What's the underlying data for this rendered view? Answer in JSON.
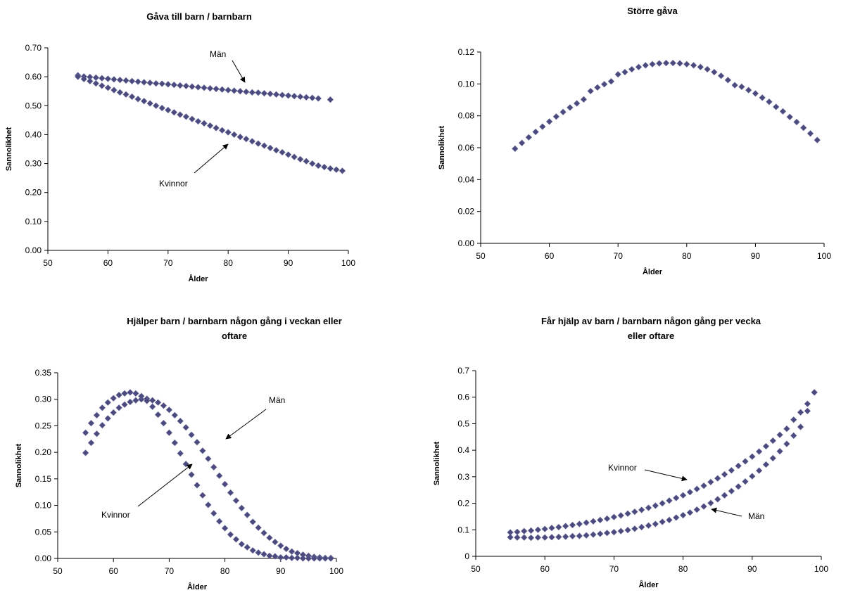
{
  "marker_color": "#4b4a7e",
  "chart_data": [
    {
      "type": "scatter",
      "title": "Gåva till barn / barnbarn",
      "xlabel": "Ålder",
      "ylabel": "Sannolikhet",
      "xlim": [
        50,
        100
      ],
      "ylim": [
        0,
        0.7
      ],
      "xticks": [
        "50",
        "60",
        "70",
        "80",
        "90",
        "100"
      ],
      "yticks": [
        "0.00",
        "0.10",
        "0.20",
        "0.30",
        "0.40",
        "0.50",
        "0.60",
        "0.70"
      ],
      "grid": false,
      "annotations": [
        {
          "text": "Män",
          "series": "Män"
        },
        {
          "text": "Kvinnor",
          "series": "Kvinnor"
        }
      ],
      "series": [
        {
          "name": "Män",
          "x": [
            55,
            56,
            57,
            58,
            59,
            60,
            61,
            62,
            63,
            64,
            65,
            66,
            67,
            68,
            69,
            70,
            71,
            72,
            73,
            74,
            75,
            76,
            77,
            78,
            79,
            80,
            81,
            82,
            83,
            84,
            85,
            86,
            87,
            88,
            89,
            90,
            91,
            92,
            93,
            94,
            95,
            97
          ],
          "y": [
            0.605,
            0.601,
            0.599,
            0.597,
            0.595,
            0.593,
            0.591,
            0.589,
            0.587,
            0.585,
            0.583,
            0.581,
            0.579,
            0.577,
            0.576,
            0.574,
            0.572,
            0.57,
            0.568,
            0.566,
            0.564,
            0.562,
            0.56,
            0.558,
            0.556,
            0.554,
            0.552,
            0.55,
            0.548,
            0.546,
            0.545,
            0.543,
            0.541,
            0.539,
            0.537,
            0.535,
            0.533,
            0.531,
            0.529,
            0.527,
            0.525,
            0.521
          ]
        },
        {
          "name": "Kvinnor",
          "x": [
            55,
            56,
            57,
            58,
            59,
            60,
            61,
            62,
            63,
            64,
            65,
            66,
            67,
            68,
            69,
            70,
            71,
            72,
            73,
            74,
            75,
            76,
            77,
            78,
            79,
            80,
            81,
            82,
            83,
            84,
            85,
            86,
            87,
            88,
            89,
            90,
            91,
            92,
            93,
            94,
            95,
            96,
            97,
            98,
            99
          ],
          "y": [
            0.6,
            0.592,
            0.585,
            0.577,
            0.569,
            0.562,
            0.554,
            0.546,
            0.539,
            0.531,
            0.523,
            0.516,
            0.508,
            0.5,
            0.492,
            0.485,
            0.477,
            0.469,
            0.462,
            0.454,
            0.446,
            0.439,
            0.431,
            0.423,
            0.415,
            0.408,
            0.4,
            0.392,
            0.385,
            0.377,
            0.369,
            0.362,
            0.354,
            0.346,
            0.339,
            0.331,
            0.323,
            0.315,
            0.308,
            0.3,
            0.293,
            0.288,
            0.283,
            0.279,
            0.275
          ]
        }
      ]
    },
    {
      "type": "scatter",
      "title": "Större gåva",
      "xlabel": "Ålder",
      "ylabel": "Sannolikhet",
      "xlim": [
        50,
        100
      ],
      "ylim": [
        0,
        0.12
      ],
      "xticks": [
        "50",
        "60",
        "70",
        "80",
        "90",
        "100"
      ],
      "yticks": [
        "0.00",
        "0.02",
        "0.04",
        "0.06",
        "0.08",
        "0.10",
        "0.12"
      ],
      "grid": false,
      "annotations": [],
      "series": [
        {
          "name": "",
          "x": [
            55,
            56,
            57,
            58,
            59,
            60,
            61,
            62,
            63,
            64,
            65,
            66,
            67,
            68,
            69,
            70,
            71,
            72,
            73,
            74,
            75,
            76,
            77,
            78,
            79,
            80,
            81,
            82,
            83,
            84,
            85,
            86,
            87,
            88,
            89,
            90,
            91,
            92,
            93,
            94,
            95,
            96,
            97,
            98,
            99
          ],
          "y": [
            0.0594,
            0.063,
            0.0665,
            0.0699,
            0.0732,
            0.0764,
            0.0795,
            0.0824,
            0.0852,
            0.0878,
            0.0903,
            0.0955,
            0.0978,
            0.0998,
            0.1016,
            0.106,
            0.1074,
            0.1092,
            0.1106,
            0.1117,
            0.1124,
            0.1129,
            0.1131,
            0.1131,
            0.1129,
            0.1124,
            0.1117,
            0.1106,
            0.1092,
            0.1074,
            0.1051,
            0.1024,
            0.0992,
            0.0982,
            0.0961,
            0.094,
            0.0914,
            0.0888,
            0.0856,
            0.0828,
            0.0793,
            0.0761,
            0.0725,
            0.0689,
            0.0648
          ]
        }
      ]
    },
    {
      "type": "scatter",
      "title": "Hjälper barn / barnbarn någon gång i veckan eller oftare",
      "title_lines": [
        "Hjälper barn / barnbarn någon gång i veckan eller",
        "oftare"
      ],
      "xlabel": "Ålder",
      "ylabel": "Sannolikhet",
      "xlim": [
        50,
        100
      ],
      "ylim": [
        0,
        0.35
      ],
      "xticks": [
        "50",
        "60",
        "70",
        "80",
        "90",
        "100"
      ],
      "yticks": [
        "0.00",
        "0.05",
        "0.10",
        "0.15",
        "0.20",
        "0.25",
        "0.30",
        "0.35"
      ],
      "grid": false,
      "annotations": [
        {
          "text": "Män",
          "series": "Män"
        },
        {
          "text": "Kvinnor",
          "series": "Kvinnor"
        }
      ],
      "series": [
        {
          "name": "Män",
          "x": [
            55,
            56,
            57,
            58,
            59,
            60,
            61,
            62,
            63,
            64,
            65,
            66,
            67,
            68,
            69,
            70,
            71,
            72,
            73,
            74,
            75,
            76,
            77,
            78,
            79,
            80,
            81,
            82,
            83,
            84,
            85,
            86,
            87,
            88,
            89,
            90,
            91,
            92,
            93,
            94,
            95,
            96,
            97,
            98,
            99
          ],
          "y": [
            0.199,
            0.218,
            0.235,
            0.251,
            0.264,
            0.275,
            0.284,
            0.29,
            0.295,
            0.298,
            0.3,
            0.301,
            0.298,
            0.294,
            0.288,
            0.28,
            0.27,
            0.259,
            0.247,
            0.233,
            0.219,
            0.203,
            0.188,
            0.172,
            0.156,
            0.14,
            0.124,
            0.109,
            0.095,
            0.082,
            0.069,
            0.058,
            0.048,
            0.039,
            0.031,
            0.024,
            0.018,
            0.013,
            0.01,
            0.007,
            0.005,
            0.003,
            0.002,
            0.001,
            0.001
          ]
        },
        {
          "name": "Kvinnor",
          "x": [
            55,
            56,
            57,
            58,
            59,
            60,
            61,
            62,
            63,
            64,
            65,
            66,
            67,
            68,
            69,
            70,
            71,
            72,
            73,
            74,
            75,
            76,
            77,
            78,
            79,
            80,
            81,
            82,
            83,
            84,
            85,
            86,
            87,
            88,
            89,
            90,
            91,
            92,
            93,
            94,
            95,
            96,
            97,
            98,
            99
          ],
          "y": [
            0.237,
            0.255,
            0.27,
            0.284,
            0.294,
            0.302,
            0.308,
            0.311,
            0.313,
            0.311,
            0.306,
            0.297,
            0.286,
            0.271,
            0.255,
            0.237,
            0.218,
            0.198,
            0.178,
            0.158,
            0.138,
            0.119,
            0.101,
            0.085,
            0.07,
            0.057,
            0.045,
            0.036,
            0.027,
            0.021,
            0.015,
            0.011,
            0.008,
            0.005,
            0.004,
            0.002,
            0.002,
            0.001,
            0.001,
            0.0,
            0.0,
            0.0,
            0.0,
            0.0,
            0.0
          ]
        }
      ]
    },
    {
      "type": "scatter",
      "title": "Får hjälp av barn / barnbarn någon gång per vecka eller oftare",
      "title_lines": [
        "Får hjälp av barn / barnbarn någon gång per vecka",
        "eller oftare"
      ],
      "xlabel": "Ålder",
      "ylabel": "Sannolikhet",
      "xlim": [
        50,
        100
      ],
      "ylim": [
        0,
        0.7
      ],
      "xticks": [
        "50",
        "60",
        "70",
        "80",
        "90",
        "100"
      ],
      "yticks": [
        "0",
        "0.1",
        "0.2",
        "0.3",
        "0.4",
        "0.5",
        "0.6",
        "0.7"
      ],
      "grid": false,
      "annotations": [
        {
          "text": "Kvinnor",
          "series": "Kvinnor"
        },
        {
          "text": "Män",
          "series": "Män"
        }
      ],
      "series": [
        {
          "name": "Kvinnor",
          "x": [
            55,
            56,
            57,
            58,
            59,
            60,
            61,
            62,
            63,
            64,
            65,
            66,
            67,
            68,
            69,
            70,
            71,
            72,
            73,
            74,
            75,
            76,
            77,
            78,
            79,
            80,
            81,
            82,
            83,
            84,
            85,
            86,
            87,
            88,
            89,
            90,
            91,
            92,
            93,
            94,
            95,
            96,
            97,
            98,
            99
          ],
          "y": [
            0.09,
            0.092,
            0.095,
            0.097,
            0.1,
            0.103,
            0.107,
            0.11,
            0.114,
            0.118,
            0.122,
            0.127,
            0.132,
            0.137,
            0.142,
            0.148,
            0.154,
            0.161,
            0.168,
            0.175,
            0.183,
            0.191,
            0.2,
            0.21,
            0.22,
            0.23,
            0.242,
            0.254,
            0.266,
            0.28,
            0.294,
            0.309,
            0.324,
            0.341,
            0.358,
            0.376,
            0.395,
            0.415,
            0.436,
            0.458,
            0.481,
            0.515,
            0.543,
            0.575,
            0.618
          ]
        },
        {
          "name": "Män",
          "x": [
            55,
            56,
            57,
            58,
            59,
            60,
            61,
            62,
            63,
            64,
            65,
            66,
            67,
            68,
            69,
            70,
            71,
            72,
            73,
            74,
            75,
            76,
            77,
            78,
            79,
            80,
            81,
            82,
            83,
            84,
            85,
            86,
            87,
            88,
            89,
            90,
            91,
            92,
            93,
            94,
            95,
            96,
            97,
            98,
            99
          ],
          "y": [
            0.072,
            0.071,
            0.071,
            0.07,
            0.071,
            0.071,
            0.072,
            0.073,
            0.074,
            0.076,
            0.077,
            0.079,
            0.082,
            0.085,
            0.088,
            0.091,
            0.095,
            0.099,
            0.104,
            0.11,
            0.116,
            0.122,
            0.13,
            0.137,
            0.146,
            0.155,
            0.165,
            0.176,
            0.188,
            0.201,
            0.215,
            0.23,
            0.246,
            0.263,
            0.282,
            0.302,
            0.323,
            0.346,
            0.37,
            0.396,
            0.424,
            0.455,
            0.488,
            0.548,
            0.618
          ]
        }
      ]
    }
  ]
}
